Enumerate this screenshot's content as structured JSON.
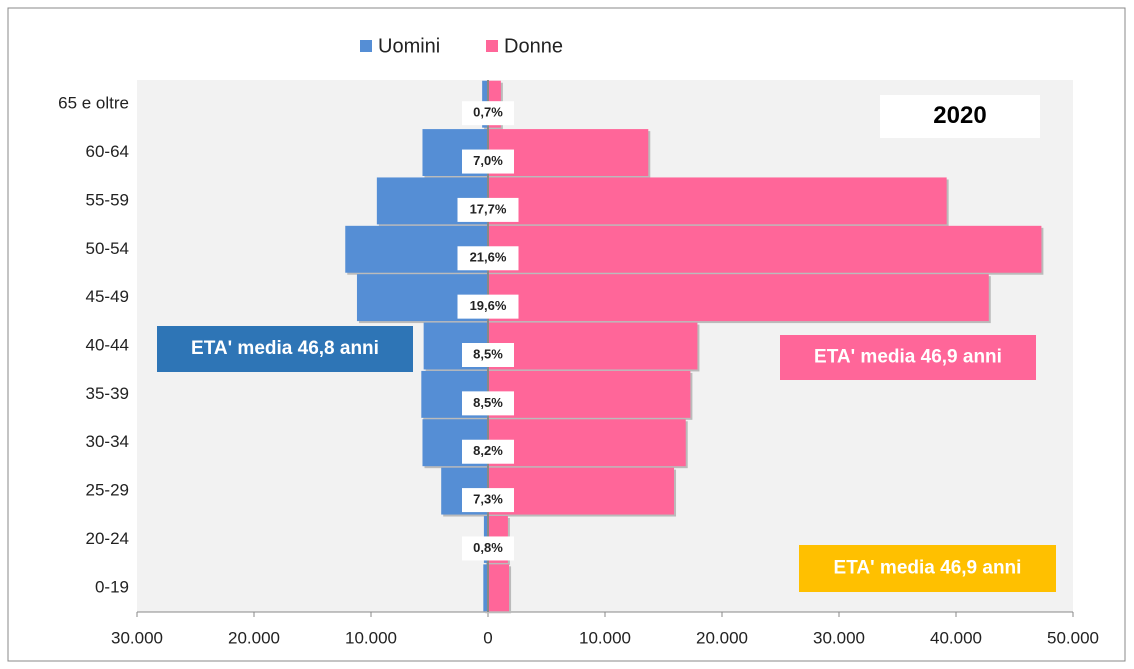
{
  "chart_data": {
    "type": "pyramid",
    "categories": [
      "65 e oltre",
      "60-64",
      "55-59",
      "50-54",
      "45-49",
      "40-44",
      "35-39",
      "30-34",
      "25-29",
      "20-24",
      "0-19"
    ],
    "series": [
      {
        "name": "Uomini",
        "color": "#558ed5",
        "values": [
          -500,
          -5600,
          -9500,
          -12200,
          -11200,
          -5500,
          -5700,
          -5600,
          -4000,
          -350,
          -400
        ]
      },
      {
        "name": "Donne",
        "color": "#ff6699",
        "values": [
          1100,
          13700,
          39200,
          47300,
          42800,
          17900,
          17300,
          16900,
          15900,
          1700,
          1800
        ]
      }
    ],
    "shares": {
      "values": [
        0.7,
        7.0,
        17.7,
        21.6,
        19.6,
        8.5,
        8.5,
        8.2,
        7.3,
        0.8,
        null
      ],
      "value_labels": [
        "0,7%",
        "7,0%",
        "17,7%",
        "21,6%",
        "19,6%",
        "8,5%",
        "8,5%",
        "8,2%",
        "7,3%",
        "0,8%",
        null
      ]
    },
    "xlim": [
      -30000,
      50000
    ],
    "xticks": [
      {
        "value": -30000,
        "label": "30.000"
      },
      {
        "value": -20000,
        "label": "20.000"
      },
      {
        "value": -10000,
        "label": "10.000"
      },
      0,
      {
        "value": 10000,
        "label": "10.000"
      },
      {
        "value": 20000,
        "label": "20.000"
      },
      {
        "value": 30000,
        "label": "30.000"
      },
      {
        "value": 40000,
        "label": "40.000"
      },
      {
        "value": 50000,
        "label": "50.000"
      }
    ],
    "legend": "top",
    "annotations": [
      {
        "text": "2020",
        "color": "#ffffff"
      },
      {
        "text": "ETA' media  46,8 anni",
        "color": "#2e75b6"
      },
      {
        "text": "ETA' media  46,9 anni",
        "color": "#ff6699"
      },
      {
        "text": "ETA' media  46,9 anni",
        "color": "#ffc000"
      }
    ]
  }
}
